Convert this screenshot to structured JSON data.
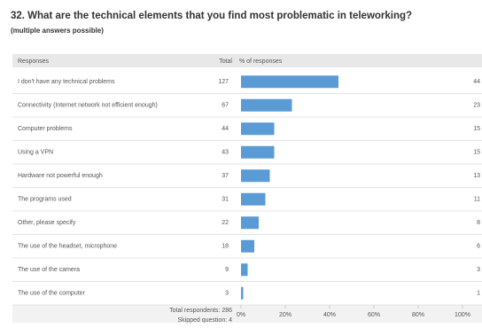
{
  "chart_data": {
    "type": "bar",
    "title": "32.  What are the technical elements that you find most problematic in teleworking?",
    "subtitle": "(multiple answers possible)",
    "columns": [
      "Responses",
      "Total",
      "% of responses"
    ],
    "categories": [
      "I don't have any technical problems",
      "Connectivity (Internet network not efficient enough)",
      "Computer problems",
      "Using a VPN",
      "Hardware not powerful enough",
      "The programs used",
      "Other, please specify",
      "The use of the headset, microphone",
      "The use of the camera",
      "The use of the computer"
    ],
    "totals": [
      127,
      67,
      44,
      43,
      37,
      31,
      22,
      18,
      9,
      3
    ],
    "values": [
      44,
      23,
      15,
      15,
      13,
      11,
      8,
      6,
      3,
      1
    ],
    "color": "#5b9bd5",
    "xlim": [
      0,
      100
    ],
    "xticks": [
      {
        "value": 0,
        "label": "0%"
      },
      {
        "value": 20,
        "label": "20%"
      },
      {
        "value": 40,
        "label": "40%"
      },
      {
        "value": 60,
        "label": "60%"
      },
      {
        "value": 80,
        "label": "80%"
      },
      {
        "value": 100,
        "label": "100%"
      }
    ],
    "footer": [
      "Total respondents: 286",
      "Skipped question: 4"
    ]
  }
}
